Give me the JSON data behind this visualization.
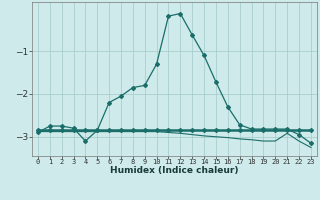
{
  "xlabel": "Humidex (Indice chaleur)",
  "x": [
    0,
    1,
    2,
    3,
    4,
    5,
    6,
    7,
    8,
    9,
    10,
    11,
    12,
    13,
    14,
    15,
    16,
    17,
    18,
    19,
    20,
    21,
    22,
    23
  ],
  "line1": [
    -2.9,
    -2.75,
    -2.75,
    -2.8,
    -3.1,
    -2.85,
    -2.2,
    -2.05,
    -1.85,
    -1.8,
    -1.3,
    -0.18,
    -0.12,
    -0.62,
    -1.1,
    -1.72,
    -2.3,
    -2.72,
    -2.82,
    -2.82,
    -2.82,
    -2.82,
    -2.95,
    -3.15
  ],
  "line2": [
    -2.85,
    -2.85,
    -2.85,
    -2.85,
    -2.85,
    -2.85,
    -2.85,
    -2.85,
    -2.85,
    -2.85,
    -2.85,
    -2.85,
    -2.85,
    -2.85,
    -2.85,
    -2.85,
    -2.85,
    -2.85,
    -2.85,
    -2.85,
    -2.85,
    -2.85,
    -2.85,
    -2.85
  ],
  "line3": [
    -2.88,
    -2.88,
    -2.88,
    -2.88,
    -2.88,
    -2.88,
    -2.88,
    -2.88,
    -2.88,
    -2.88,
    -2.88,
    -2.9,
    -2.92,
    -2.95,
    -2.98,
    -3.0,
    -3.02,
    -3.05,
    -3.07,
    -3.1,
    -3.1,
    -2.92,
    -3.1,
    -3.25
  ],
  "ylim": [
    -3.45,
    0.15
  ],
  "xlim": [
    -0.5,
    23.5
  ],
  "bg_color": "#ceeaea",
  "grid_color": "#aacece",
  "line_color": "#1a6e6a",
  "marker": "D",
  "yticks": [
    -1,
    -2,
    -3
  ],
  "xtick_labels": [
    "0",
    "1",
    "2",
    "3",
    "4",
    "5",
    "6",
    "7",
    "8",
    "9",
    "10",
    "11",
    "12",
    "13",
    "14",
    "15",
    "16",
    "17",
    "18",
    "19",
    "20",
    "21",
    "22",
    "23"
  ]
}
